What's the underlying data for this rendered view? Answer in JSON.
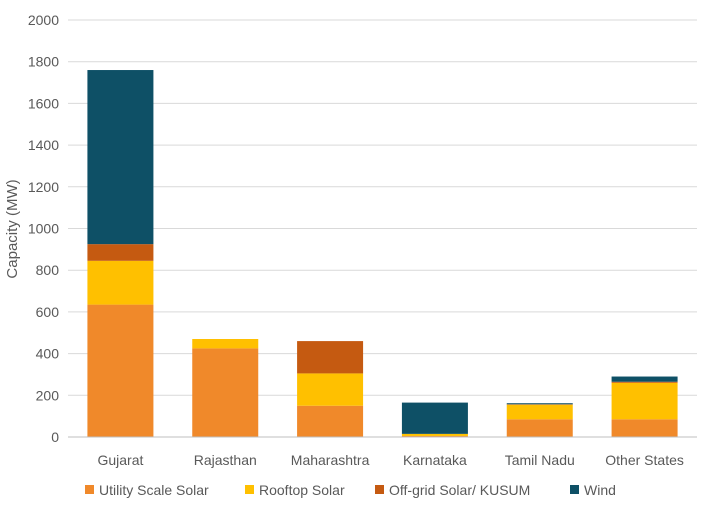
{
  "chart_data": {
    "type": "bar",
    "stacked": true,
    "title": "",
    "xlabel": "",
    "ylabel": "Capacity (MW)",
    "ylim": [
      0,
      2000
    ],
    "yticks": [
      0,
      200,
      400,
      600,
      800,
      1000,
      1200,
      1400,
      1600,
      1800,
      2000
    ],
    "grid": true,
    "legend_position": "bottom",
    "categories": [
      "Gujarat",
      "Rajasthan",
      "Maharashtra",
      "Karnataka",
      "Tamil Nadu",
      "Other States"
    ],
    "series": [
      {
        "name": "Utility Scale Solar",
        "color": "#F0892A",
        "values": [
          635,
          425,
          150,
          5,
          85,
          85
        ]
      },
      {
        "name": "Rooftop Solar",
        "color": "#FFC000",
        "values": [
          210,
          45,
          155,
          10,
          70,
          175
        ]
      },
      {
        "name": "Off-grid Solar/ KUSUM",
        "color": "#C55A11",
        "values": [
          80,
          0,
          155,
          0,
          2,
          5
        ]
      },
      {
        "name": "Wind",
        "color": "#0E5066",
        "values": [
          835,
          0,
          0,
          150,
          5,
          25
        ]
      }
    ]
  },
  "colors": {
    "grid": "#D9D9D9",
    "axis": "#BFBFBF",
    "text": "#595959"
  }
}
